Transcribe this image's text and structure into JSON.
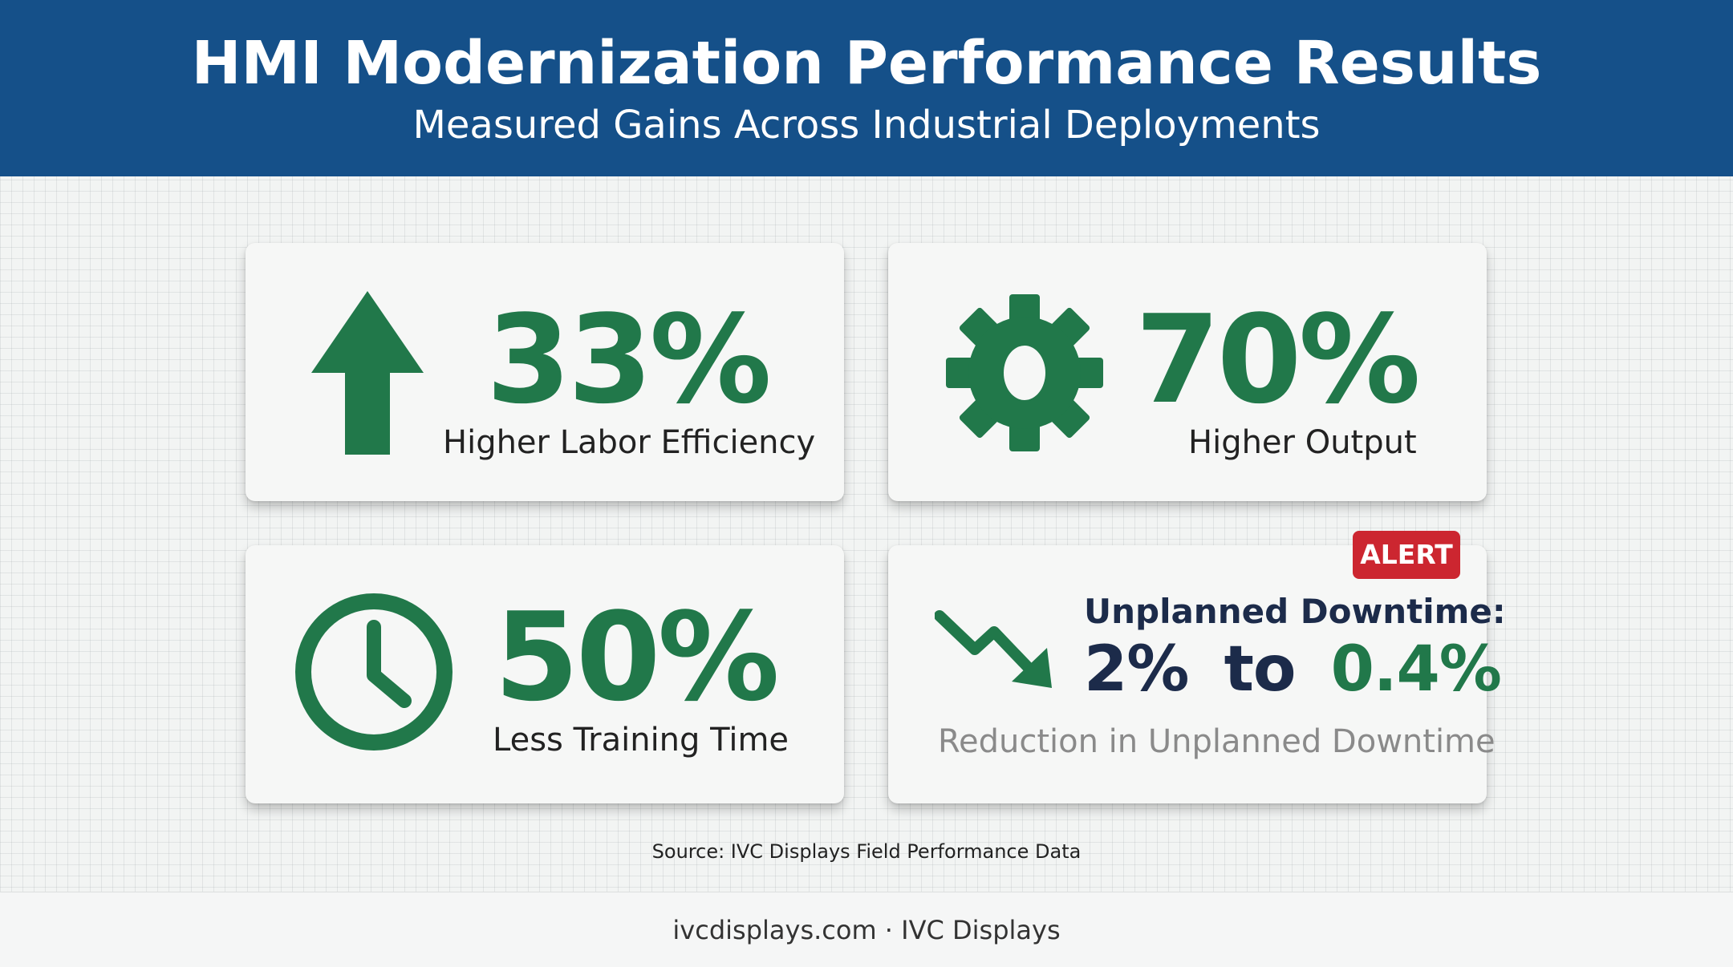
{
  "header": {
    "title": "HMI Modernization Performance Results",
    "subtitle": "Measured Gains Across Industrial Deployments"
  },
  "colors": {
    "header_bg": "#155089",
    "accent_green": "#21784a",
    "alert_red": "#cc2630",
    "navy_text": "#1c2b4a"
  },
  "cards": [
    {
      "icon": "up-arrow-icon",
      "value": "33%",
      "label": "Higher Labor Efficiency"
    },
    {
      "icon": "gear-icon",
      "value": "70%",
      "label": "Higher Output"
    },
    {
      "icon": "clock-icon",
      "value": "50%",
      "label": "Less Training Time"
    },
    {
      "icon": "trend-down-arrow-icon",
      "badge": "ALERT",
      "heading": "Unplanned Downtime:",
      "from": "2%",
      "connector": "to",
      "to": "0.4%",
      "label": "Reduction in Unplanned Downtime"
    }
  ],
  "source": "Source: IVC Displays Field Performance Data",
  "footer": "ivcdisplays.com · IVC Displays"
}
